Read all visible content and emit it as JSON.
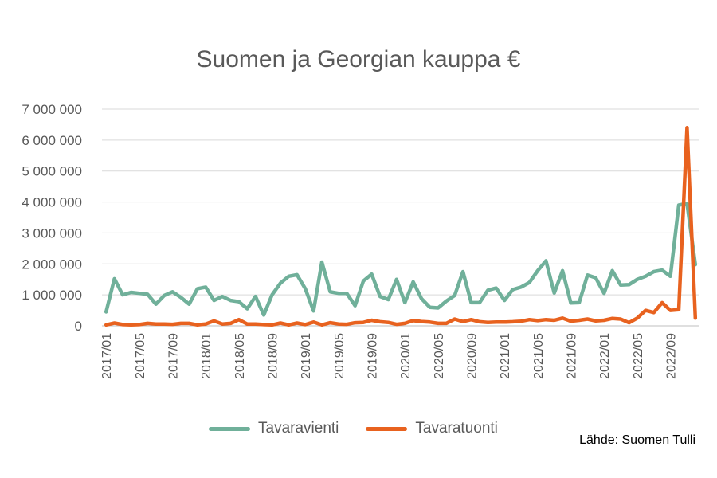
{
  "chart_data": {
    "type": "line",
    "title": "Suomen ja Georgian kauppa €",
    "xlabel": "",
    "ylabel": "",
    "ylim": [
      0,
      7000000
    ],
    "y_ticks": [
      0,
      1000000,
      2000000,
      3000000,
      4000000,
      5000000,
      6000000,
      7000000
    ],
    "y_tick_labels": [
      "0",
      "1 000 000",
      "2 000 000",
      "3 000 000",
      "4 000 000",
      "5 000 000",
      "6 000 000",
      "7 000 000"
    ],
    "x_tick_labels": [
      "2017/01",
      "2017/05",
      "2017/09",
      "2018/01",
      "2018/05",
      "2018/09",
      "2019/01",
      "2019/05",
      "2019/09",
      "2020/01",
      "2020/05",
      "2020/09",
      "2021/01",
      "2021/05",
      "2021/09",
      "2022/01",
      "2022/05",
      "2022/09"
    ],
    "grid": true,
    "legend_position": "bottom",
    "x": [
      "2017/01",
      "2017/02",
      "2017/03",
      "2017/04",
      "2017/05",
      "2017/06",
      "2017/07",
      "2017/08",
      "2017/09",
      "2017/10",
      "2017/11",
      "2017/12",
      "2018/01",
      "2018/02",
      "2018/03",
      "2018/04",
      "2018/05",
      "2018/06",
      "2018/07",
      "2018/08",
      "2018/09",
      "2018/10",
      "2018/11",
      "2018/12",
      "2019/01",
      "2019/02",
      "2019/03",
      "2019/04",
      "2019/05",
      "2019/06",
      "2019/07",
      "2019/08",
      "2019/09",
      "2019/10",
      "2019/11",
      "2019/12",
      "2020/01",
      "2020/02",
      "2020/03",
      "2020/04",
      "2020/05",
      "2020/06",
      "2020/07",
      "2020/08",
      "2020/09",
      "2020/10",
      "2020/11",
      "2020/12",
      "2021/01",
      "2021/02",
      "2021/03",
      "2021/04",
      "2021/05",
      "2021/06",
      "2021/07",
      "2021/08",
      "2021/09",
      "2021/10",
      "2021/11",
      "2021/12",
      "2022/01",
      "2022/02",
      "2022/03",
      "2022/04",
      "2022/05",
      "2022/06",
      "2022/07",
      "2022/08",
      "2022/09",
      "2022/10",
      "2022/11",
      "2022/12"
    ],
    "series": [
      {
        "name": "Tavaravienti",
        "color": "#70b09a",
        "values": [
          450000,
          1520000,
          1000000,
          1080000,
          1050000,
          1020000,
          700000,
          980000,
          1100000,
          920000,
          700000,
          1200000,
          1250000,
          820000,
          950000,
          820000,
          780000,
          550000,
          950000,
          350000,
          1000000,
          1380000,
          1600000,
          1650000,
          1200000,
          480000,
          2060000,
          1100000,
          1050000,
          1050000,
          650000,
          1450000,
          1670000,
          950000,
          850000,
          1500000,
          750000,
          1420000,
          880000,
          600000,
          580000,
          800000,
          980000,
          1750000,
          750000,
          750000,
          1150000,
          1220000,
          820000,
          1170000,
          1250000,
          1400000,
          1780000,
          2100000,
          1060000,
          1780000,
          740000,
          750000,
          1640000,
          1550000,
          1050000,
          1780000,
          1320000,
          1330000,
          1500000,
          1600000,
          1750000,
          1800000,
          1600000,
          3900000,
          3950000,
          1980000
        ]
      },
      {
        "name": "Tavaratuonti",
        "color": "#e8621f",
        "values": [
          30000,
          90000,
          40000,
          30000,
          40000,
          80000,
          60000,
          60000,
          50000,
          80000,
          80000,
          30000,
          60000,
          160000,
          60000,
          80000,
          200000,
          60000,
          60000,
          40000,
          30000,
          90000,
          30000,
          90000,
          40000,
          120000,
          30000,
          100000,
          60000,
          50000,
          100000,
          110000,
          180000,
          130000,
          110000,
          50000,
          80000,
          170000,
          140000,
          120000,
          80000,
          80000,
          220000,
          140000,
          200000,
          130000,
          110000,
          120000,
          120000,
          130000,
          150000,
          200000,
          170000,
          200000,
          180000,
          250000,
          150000,
          180000,
          220000,
          160000,
          180000,
          240000,
          220000,
          100000,
          250000,
          500000,
          430000,
          750000,
          500000,
          520000,
          6400000,
          250000
        ]
      }
    ]
  },
  "source_text": "Lähde: Suomen Tulli"
}
